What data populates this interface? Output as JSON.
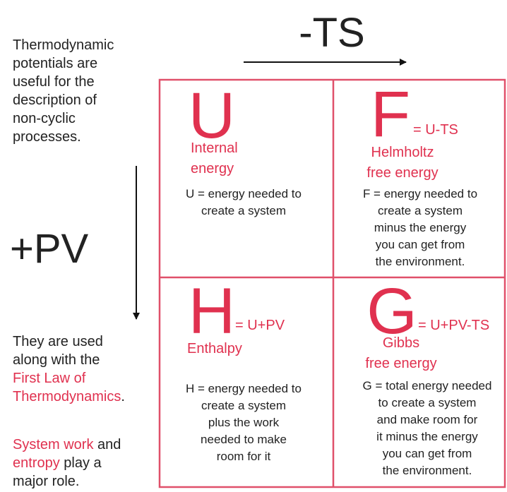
{
  "intro": [
    "Thermodynamic",
    "potentials are",
    "useful for the",
    "description of",
    "non-cyclic",
    "processes."
  ],
  "axis_top": "-TS",
  "axis_left": "+PV",
  "notes": [
    [
      [
        {
          "text": "They are used"
        }
      ],
      [
        {
          "text": "along with the"
        }
      ],
      [
        {
          "text": "First Law of",
          "red": true
        }
      ],
      [
        {
          "text": "Thermodynamics",
          "red": true
        },
        {
          "text": "."
        }
      ]
    ],
    [
      [
        {
          "text": "System work",
          "red": true
        },
        {
          "text": " and"
        }
      ],
      [
        {
          "text": "entropy",
          "red": true
        },
        {
          "text": " play a"
        }
      ],
      [
        {
          "text": "major role."
        }
      ]
    ]
  ],
  "cells": [
    {
      "letter": "U",
      "name": [
        "Internal",
        "energy"
      ],
      "description": [
        "U = energy needed to",
        "create a system"
      ]
    },
    {
      "letter": "F",
      "formula": "= U-TS",
      "name": [
        "Helmholtz",
        "free energy"
      ],
      "description": [
        "F = energy needed to",
        "create a system",
        "minus the energy",
        "you can get from",
        "the environment."
      ]
    },
    {
      "letter": "H",
      "formula": "= U+PV",
      "name": [
        "Enthalpy"
      ],
      "description": [
        "H = energy needed to",
        "create a system",
        "plus the work",
        "needed to make",
        "room for it"
      ]
    },
    {
      "letter": "G",
      "formula": "= U+PV-TS",
      "name": [
        "Gibbs",
        "free energy"
      ],
      "description": [
        "G = total energy needed",
        "to create a system",
        "and make room for",
        "it minus the energy",
        "you can get from",
        "the environment."
      ]
    }
  ]
}
